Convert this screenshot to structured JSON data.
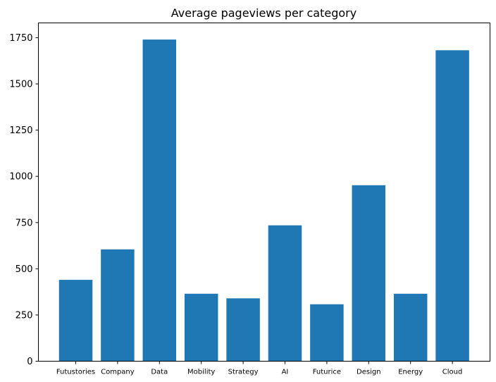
{
  "chart_data": {
    "type": "bar",
    "title": "Average pageviews per category",
    "xlabel": "",
    "ylabel": "",
    "categories": [
      "Futustories",
      "Company",
      "Data",
      "Mobility",
      "Strategy",
      "AI",
      "Futurice",
      "Design",
      "Energy",
      "Cloud"
    ],
    "values": [
      440,
      605,
      1740,
      365,
      340,
      735,
      308,
      952,
      365,
      1682
    ],
    "ylim": [
      0,
      1830
    ],
    "yticks": [
      0,
      250,
      500,
      750,
      1000,
      1250,
      1500,
      1750
    ],
    "bar_color": "#1f77b4",
    "grid": false,
    "legend": "none"
  }
}
